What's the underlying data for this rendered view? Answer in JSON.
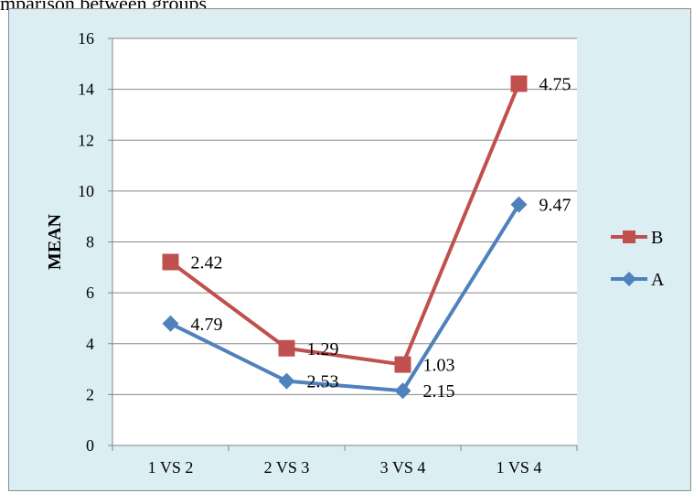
{
  "caption": "mparison between groups",
  "chart_data": {
    "type": "line",
    "title": "",
    "xlabel": "",
    "ylabel": "MEAN",
    "categories": [
      "1 VS 2",
      "2 VS 3",
      "3 VS 4",
      "1 VS 4"
    ],
    "ylim": [
      0,
      16
    ],
    "yticks": [
      0,
      2,
      4,
      6,
      8,
      10,
      12,
      14,
      16
    ],
    "grid": true,
    "legend_position": "right",
    "series": [
      {
        "name": "B",
        "color": "#c0504d",
        "marker": "square",
        "values": [
          7.21,
          3.82,
          3.18,
          14.22
        ],
        "labels": [
          "2.42",
          "1.29",
          "1.03",
          "4.75"
        ]
      },
      {
        "name": "A",
        "color": "#4f81bd",
        "marker": "diamond",
        "values": [
          4.79,
          2.53,
          2.15,
          9.47
        ],
        "labels": [
          "4.79",
          "2.53",
          "2.15",
          "9.47"
        ]
      }
    ],
    "plot_background": "#ffffff",
    "chart_background": "#dbeef4"
  }
}
